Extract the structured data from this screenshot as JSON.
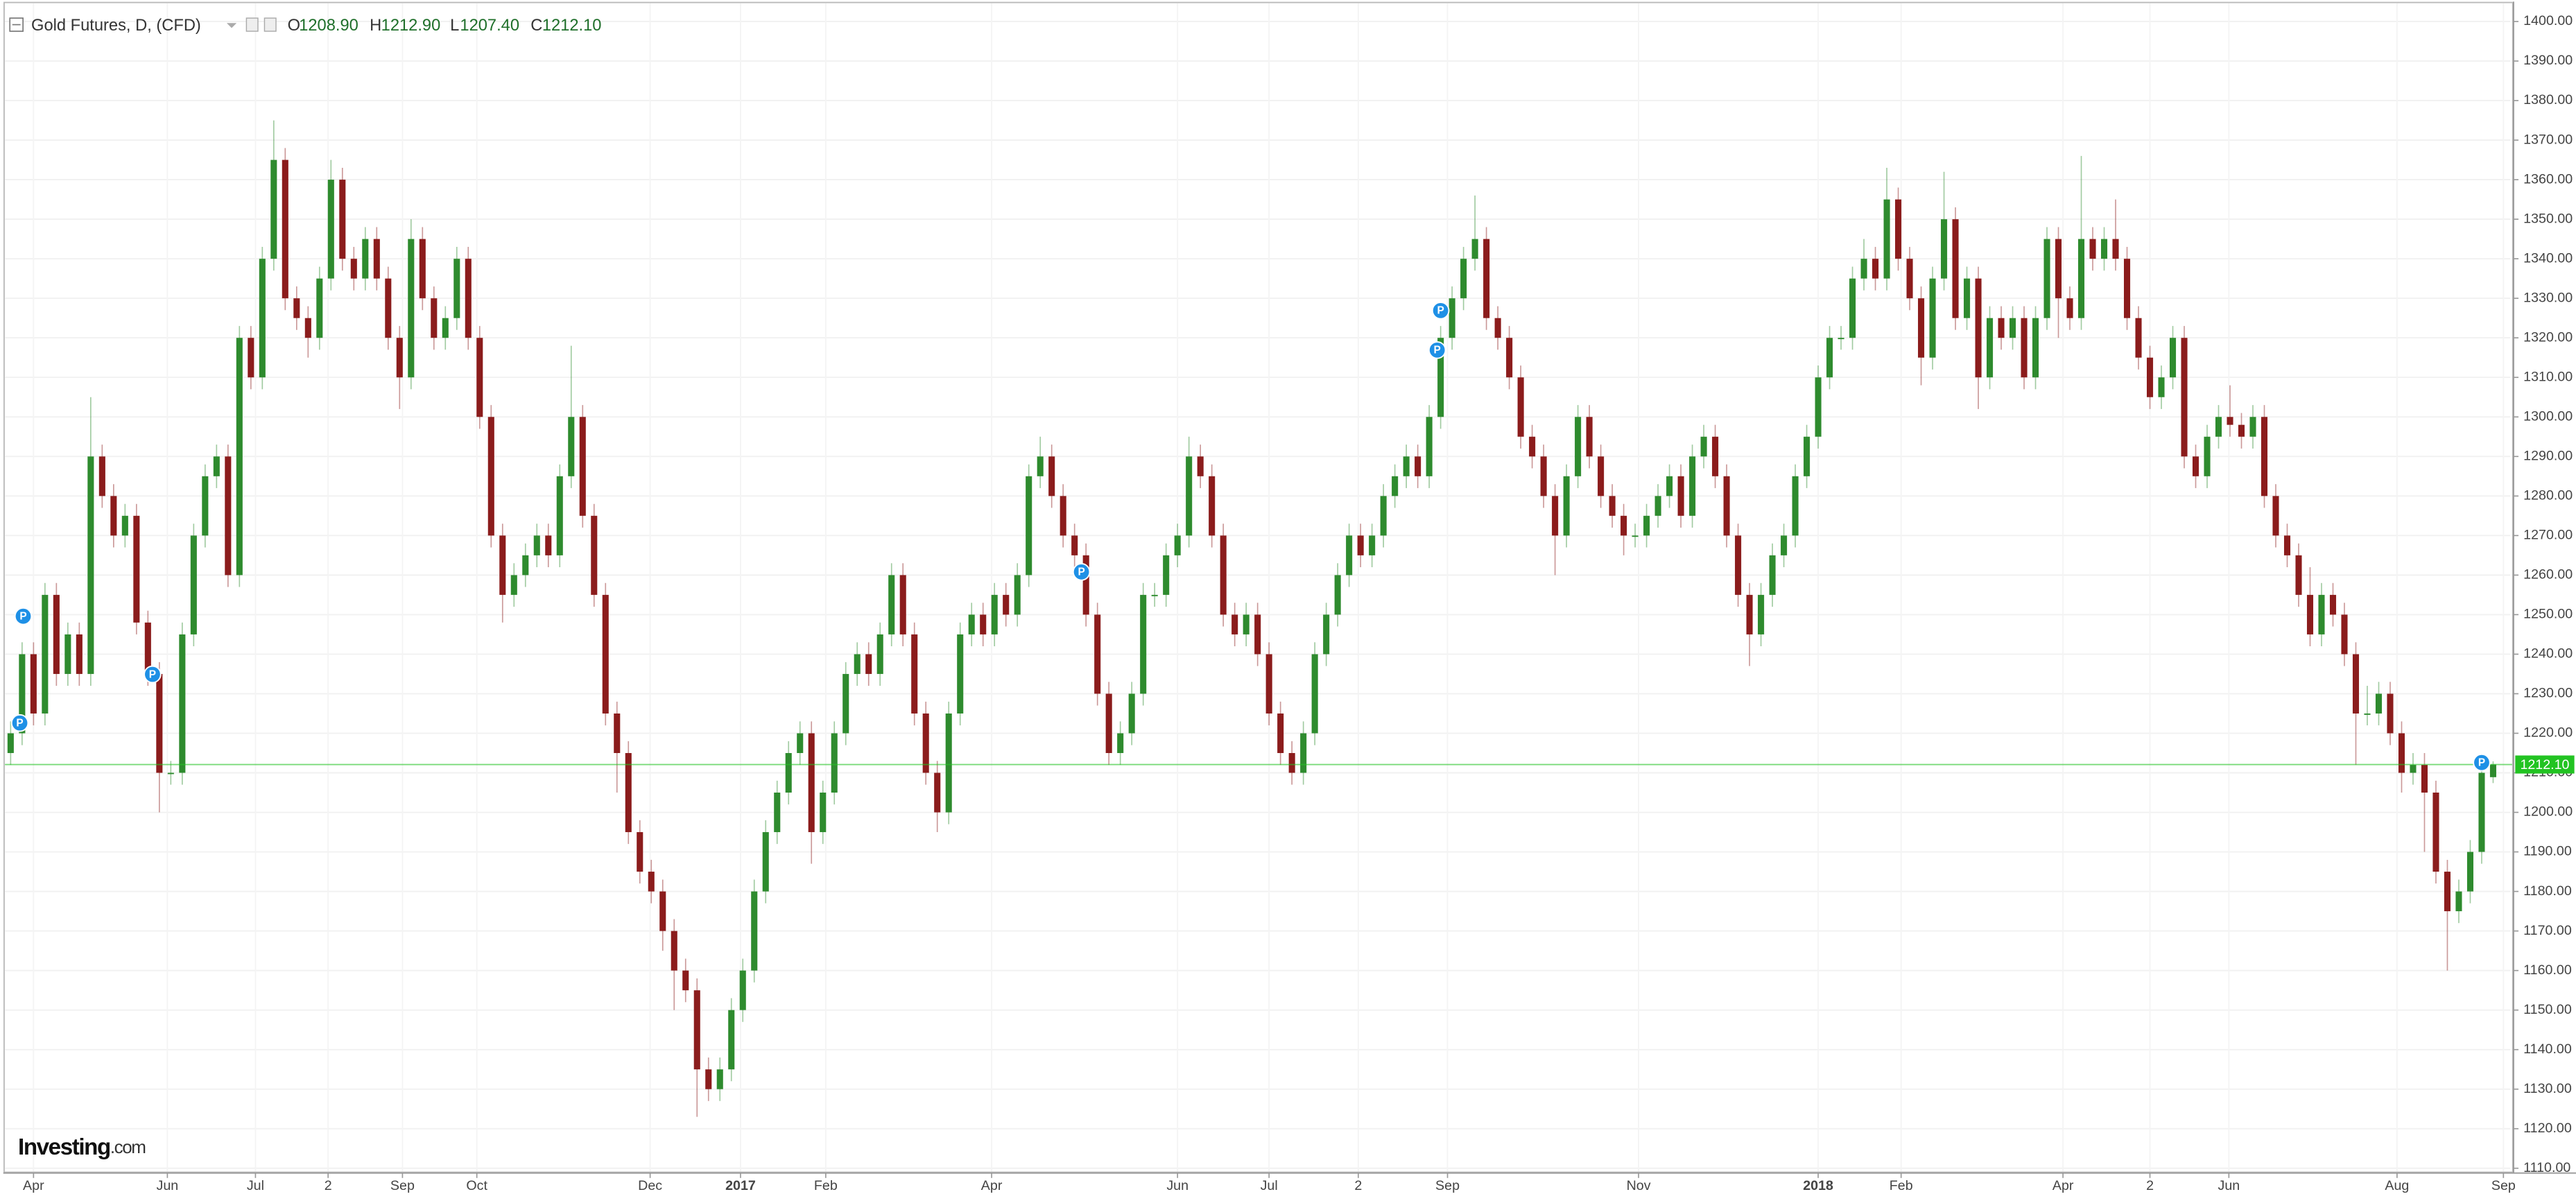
{
  "chart_data": {
    "type": "candlestick",
    "title": "Gold Futures, D, (CFD)",
    "ohlc_header": {
      "o_label": "O",
      "o_value": "1208.90",
      "h_label": "H",
      "h_value": "1212.90",
      "l_label": "L",
      "l_value": "1207.40",
      "c_label": "C",
      "c_value": "1212.10"
    },
    "brand": "Investing",
    "brand_suffix": ".com",
    "up_color": "#2e8b2e",
    "down_color": "#8b1c1c",
    "open": [
      1215,
      1220,
      1240,
      1225,
      1255,
      1235,
      1245,
      1235,
      1290,
      1280,
      1270,
      1275,
      1248,
      1235,
      1210,
      1210,
      1245,
      1270,
      1285,
      1290,
      1260,
      1320,
      1310,
      1340,
      1365,
      1330,
      1325,
      1320,
      1335,
      1360,
      1340,
      1335,
      1345,
      1335,
      1320,
      1310,
      1345,
      1330,
      1320,
      1325,
      1340,
      1320,
      1300,
      1270,
      1255,
      1260,
      1265,
      1270,
      1265,
      1285,
      1300,
      1275,
      1255,
      1225,
      1215,
      1195,
      1185,
      1180,
      1170,
      1160,
      1155,
      1135,
      1130,
      1135,
      1150,
      1160,
      1180,
      1195,
      1205,
      1215,
      1220,
      1195,
      1205,
      1220,
      1235,
      1240,
      1235,
      1245,
      1260,
      1245,
      1225,
      1210,
      1200,
      1225,
      1245,
      1250,
      1245,
      1255,
      1250,
      1260,
      1285,
      1290,
      1280,
      1270,
      1265,
      1250,
      1230,
      1215,
      1220,
      1230,
      1255,
      1255,
      1265,
      1270,
      1290,
      1285,
      1270,
      1250,
      1245,
      1250,
      1240,
      1225,
      1215,
      1210,
      1220,
      1240,
      1250,
      1260,
      1270,
      1265,
      1270,
      1280,
      1285,
      1290,
      1285,
      1300,
      1320,
      1330,
      1340,
      1345,
      1325,
      1320,
      1310,
      1295,
      1290,
      1280,
      1270,
      1285,
      1300,
      1290,
      1280,
      1275,
      1270,
      1270,
      1275,
      1280,
      1285,
      1275,
      1290,
      1295,
      1285,
      1270,
      1255,
      1245,
      1255,
      1265,
      1270,
      1285,
      1295,
      1310,
      1320,
      1320,
      1335,
      1340,
      1335,
      1355,
      1340,
      1330,
      1315,
      1335,
      1350,
      1325,
      1335,
      1310,
      1325,
      1320,
      1325,
      1310,
      1325,
      1345,
      1330,
      1325,
      1345,
      1340,
      1345,
      1340,
      1325,
      1315,
      1305,
      1310,
      1320,
      1290,
      1285,
      1295,
      1300,
      1298,
      1295,
      1300,
      1280,
      1270,
      1265,
      1255,
      1245,
      1255,
      1250,
      1240,
      1225,
      1225,
      1230,
      1220,
      1210,
      1212,
      1205,
      1185,
      1175,
      1180,
      1190,
      1208.9
    ],
    "high": [
      1223,
      1243,
      1243,
      1258,
      1258,
      1248,
      1248,
      1305,
      1293,
      1283,
      1278,
      1278,
      1251,
      1238,
      1213,
      1248,
      1273,
      1288,
      1293,
      1293,
      1323,
      1323,
      1343,
      1375,
      1368,
      1333,
      1328,
      1338,
      1365,
      1363,
      1343,
      1348,
      1348,
      1338,
      1323,
      1350,
      1348,
      1333,
      1328,
      1343,
      1343,
      1323,
      1303,
      1273,
      1263,
      1268,
      1273,
      1273,
      1288,
      1318,
      1303,
      1278,
      1258,
      1228,
      1218,
      1198,
      1188,
      1183,
      1173,
      1163,
      1158,
      1138,
      1138,
      1153,
      1163,
      1183,
      1198,
      1208,
      1218,
      1223,
      1223,
      1208,
      1223,
      1238,
      1243,
      1243,
      1248,
      1263,
      1263,
      1248,
      1228,
      1213,
      1228,
      1248,
      1253,
      1253,
      1258,
      1258,
      1263,
      1288,
      1295,
      1293,
      1283,
      1273,
      1268,
      1253,
      1233,
      1223,
      1233,
      1258,
      1258,
      1268,
      1273,
      1295,
      1293,
      1288,
      1273,
      1253,
      1253,
      1253,
      1243,
      1228,
      1218,
      1223,
      1243,
      1253,
      1263,
      1273,
      1273,
      1273,
      1283,
      1288,
      1293,
      1293,
      1303,
      1323,
      1333,
      1343,
      1356,
      1348,
      1328,
      1323,
      1313,
      1298,
      1293,
      1283,
      1288,
      1303,
      1303,
      1293,
      1283,
      1278,
      1273,
      1278,
      1283,
      1288,
      1288,
      1293,
      1298,
      1298,
      1288,
      1273,
      1258,
      1258,
      1268,
      1273,
      1288,
      1298,
      1313,
      1323,
      1323,
      1338,
      1345,
      1343,
      1363,
      1358,
      1343,
      1333,
      1338,
      1362,
      1353,
      1338,
      1338,
      1328,
      1328,
      1328,
      1328,
      1328,
      1348,
      1348,
      1333,
      1366,
      1348,
      1348,
      1355,
      1343,
      1328,
      1318,
      1313,
      1323,
      1323,
      1293,
      1298,
      1303,
      1308,
      1301,
      1303,
      1303,
      1283,
      1273,
      1268,
      1262,
      1258,
      1258,
      1253,
      1243,
      1232,
      1233,
      1233,
      1223,
      1215,
      1215,
      1208,
      1188,
      1183,
      1193,
      1213,
      1212.9
    ],
    "low": [
      1212,
      1217,
      1222,
      1222,
      1232,
      1232,
      1232,
      1232,
      1277,
      1267,
      1267,
      1245,
      1232,
      1200,
      1207,
      1207,
      1242,
      1267,
      1282,
      1257,
      1257,
      1307,
      1307,
      1337,
      1327,
      1322,
      1315,
      1317,
      1332,
      1337,
      1332,
      1332,
      1332,
      1317,
      1302,
      1307,
      1327,
      1317,
      1317,
      1322,
      1317,
      1297,
      1267,
      1248,
      1252,
      1257,
      1262,
      1262,
      1262,
      1282,
      1272,
      1252,
      1222,
      1205,
      1192,
      1182,
      1177,
      1165,
      1150,
      1152,
      1123,
      1127,
      1127,
      1132,
      1147,
      1157,
      1177,
      1192,
      1202,
      1212,
      1187,
      1192,
      1202,
      1217,
      1232,
      1232,
      1232,
      1242,
      1242,
      1222,
      1207,
      1195,
      1197,
      1222,
      1242,
      1242,
      1242,
      1247,
      1247,
      1257,
      1282,
      1277,
      1267,
      1262,
      1247,
      1227,
      1212,
      1212,
      1217,
      1227,
      1252,
      1252,
      1262,
      1267,
      1282,
      1267,
      1247,
      1242,
      1242,
      1237,
      1222,
      1212,
      1207,
      1207,
      1217,
      1237,
      1247,
      1257,
      1262,
      1262,
      1267,
      1277,
      1282,
      1282,
      1282,
      1297,
      1317,
      1327,
      1337,
      1322,
      1317,
      1307,
      1292,
      1287,
      1277,
      1260,
      1267,
      1282,
      1287,
      1277,
      1272,
      1265,
      1267,
      1267,
      1272,
      1277,
      1272,
      1272,
      1287,
      1282,
      1267,
      1252,
      1237,
      1242,
      1252,
      1262,
      1267,
      1282,
      1292,
      1307,
      1317,
      1317,
      1332,
      1332,
      1332,
      1337,
      1327,
      1308,
      1312,
      1332,
      1322,
      1322,
      1302,
      1307,
      1317,
      1317,
      1307,
      1307,
      1322,
      1320,
      1322,
      1322,
      1337,
      1337,
      1337,
      1322,
      1312,
      1302,
      1302,
      1307,
      1287,
      1282,
      1282,
      1292,
      1295,
      1292,
      1292,
      1277,
      1267,
      1262,
      1252,
      1242,
      1242,
      1247,
      1237,
      1212,
      1222,
      1222,
      1217,
      1205,
      1207,
      1190,
      1182,
      1160,
      1172,
      1177,
      1187,
      1207.4
    ],
    "close": [
      1220,
      1240,
      1225,
      1255,
      1235,
      1245,
      1235,
      1290,
      1280,
      1270,
      1275,
      1248,
      1235,
      1210,
      1210,
      1245,
      1270,
      1285,
      1290,
      1260,
      1320,
      1310,
      1340,
      1365,
      1330,
      1325,
      1320,
      1335,
      1360,
      1340,
      1335,
      1345,
      1335,
      1320,
      1310,
      1345,
      1330,
      1320,
      1325,
      1340,
      1320,
      1300,
      1270,
      1255,
      1260,
      1265,
      1270,
      1265,
      1285,
      1300,
      1275,
      1255,
      1225,
      1215,
      1195,
      1185,
      1180,
      1170,
      1160,
      1155,
      1135,
      1130,
      1135,
      1150,
      1160,
      1180,
      1195,
      1205,
      1215,
      1220,
      1195,
      1205,
      1220,
      1235,
      1240,
      1235,
      1245,
      1260,
      1245,
      1225,
      1210,
      1200,
      1225,
      1245,
      1250,
      1245,
      1255,
      1250,
      1260,
      1285,
      1290,
      1280,
      1270,
      1265,
      1250,
      1230,
      1215,
      1220,
      1230,
      1255,
      1255,
      1265,
      1270,
      1290,
      1285,
      1270,
      1250,
      1245,
      1250,
      1240,
      1225,
      1215,
      1210,
      1220,
      1240,
      1250,
      1260,
      1270,
      1265,
      1270,
      1280,
      1285,
      1290,
      1285,
      1300,
      1320,
      1330,
      1340,
      1345,
      1325,
      1320,
      1310,
      1295,
      1290,
      1280,
      1270,
      1285,
      1300,
      1290,
      1280,
      1275,
      1270,
      1270,
      1275,
      1280,
      1285,
      1275,
      1290,
      1295,
      1285,
      1270,
      1255,
      1245,
      1255,
      1265,
      1270,
      1285,
      1295,
      1310,
      1320,
      1320,
      1335,
      1340,
      1335,
      1355,
      1340,
      1330,
      1315,
      1335,
      1350,
      1325,
      1335,
      1310,
      1325,
      1320,
      1325,
      1310,
      1325,
      1345,
      1330,
      1325,
      1345,
      1340,
      1345,
      1340,
      1325,
      1315,
      1305,
      1310,
      1320,
      1290,
      1285,
      1295,
      1300,
      1298,
      1295,
      1300,
      1280,
      1270,
      1265,
      1255,
      1245,
      1255,
      1250,
      1240,
      1225,
      1225,
      1230,
      1220,
      1210,
      1212,
      1205,
      1185,
      1175,
      1180,
      1190,
      1210,
      1212.1
    ],
    "xlim": [
      -0.5,
      218.5
    ],
    "xticks": [
      {
        "value": 2,
        "label": "Apr"
      },
      {
        "value": 13.7,
        "label": "Jun"
      },
      {
        "value": 21.4,
        "label": "Jul"
      },
      {
        "value": 27.75,
        "label": "2"
      },
      {
        "value": 34.25,
        "label": "Sep"
      },
      {
        "value": 40.75,
        "label": "Oct"
      },
      {
        "value": 55.9,
        "label": "Dec"
      },
      {
        "value": 63.8,
        "label": "2017"
      },
      {
        "value": 71.25,
        "label": "Feb"
      },
      {
        "value": 85.75,
        "label": "Apr"
      },
      {
        "value": 102,
        "label": "Jun"
      },
      {
        "value": 110,
        "label": "Jul"
      },
      {
        "value": 117.8,
        "label": "2"
      },
      {
        "value": 125.6,
        "label": "Sep"
      },
      {
        "value": 142.3,
        "label": "Nov"
      },
      {
        "value": 158,
        "label": "2018"
      },
      {
        "value": 165.25,
        "label": "Feb"
      },
      {
        "value": 179.4,
        "label": "Apr"
      },
      {
        "value": 187,
        "label": "2"
      },
      {
        "value": 193.9,
        "label": "Jun"
      },
      {
        "value": 208.6,
        "label": "Aug"
      },
      {
        "value": 217.9,
        "label": "Sep"
      }
    ],
    "ylim": [
      1109.2,
      1404.6
    ],
    "yticks": [
      {
        "value": 1110,
        "label": "1110.00"
      },
      {
        "value": 1120,
        "label": "1120.00"
      },
      {
        "value": 1130,
        "label": "1130.00"
      },
      {
        "value": 1140,
        "label": "1140.00"
      },
      {
        "value": 1150,
        "label": "1150.00"
      },
      {
        "value": 1160,
        "label": "1160.00"
      },
      {
        "value": 1170,
        "label": "1170.00"
      },
      {
        "value": 1180,
        "label": "1180.00"
      },
      {
        "value": 1190,
        "label": "1190.00"
      },
      {
        "value": 1200,
        "label": "1200.00"
      },
      {
        "value": 1210,
        "label": "1210.00"
      },
      {
        "value": 1220,
        "label": "1220.00"
      },
      {
        "value": 1230,
        "label": "1230.00"
      },
      {
        "value": 1240,
        "label": "1240.00"
      },
      {
        "value": 1250,
        "label": "1250.00"
      },
      {
        "value": 1260,
        "label": "1260.00"
      },
      {
        "value": 1270,
        "label": "1270.00"
      },
      {
        "value": 1280,
        "label": "1280.00"
      },
      {
        "value": 1290,
        "label": "1290.00"
      },
      {
        "value": 1300,
        "label": "1300.00"
      },
      {
        "value": 1310,
        "label": "1310.00"
      },
      {
        "value": 1320,
        "label": "1320.00"
      },
      {
        "value": 1330,
        "label": "1330.00"
      },
      {
        "value": 1340,
        "label": "1340.00"
      },
      {
        "value": 1350,
        "label": "1350.00"
      },
      {
        "value": 1360,
        "label": "1360.00"
      },
      {
        "value": 1370,
        "label": "1370.00"
      },
      {
        "value": 1380,
        "label": "1380.00"
      },
      {
        "value": 1390,
        "label": "1390.00"
      },
      {
        "value": 1400,
        "label": "1400.00"
      }
    ],
    "grid": true,
    "last_price": 1212.1,
    "last_price_label": "1212.10",
    "last_price_color": "#22c322",
    "markers": [
      {
        "index": 1.1,
        "value": 1249.6,
        "label": "P"
      },
      {
        "index": 0.8,
        "value": 1222.6,
        "label": "P"
      },
      {
        "index": 12.4,
        "value": 1234.9,
        "label": "P"
      },
      {
        "index": 93.6,
        "value": 1260.8,
        "label": "P"
      },
      {
        "index": 125,
        "value": 1326.9,
        "label": "P"
      },
      {
        "index": 124.7,
        "value": 1316.9,
        "label": "P"
      },
      {
        "index": 216,
        "value": 1212.6,
        "label": "P"
      }
    ],
    "marker_color": "#1e90e6"
  }
}
